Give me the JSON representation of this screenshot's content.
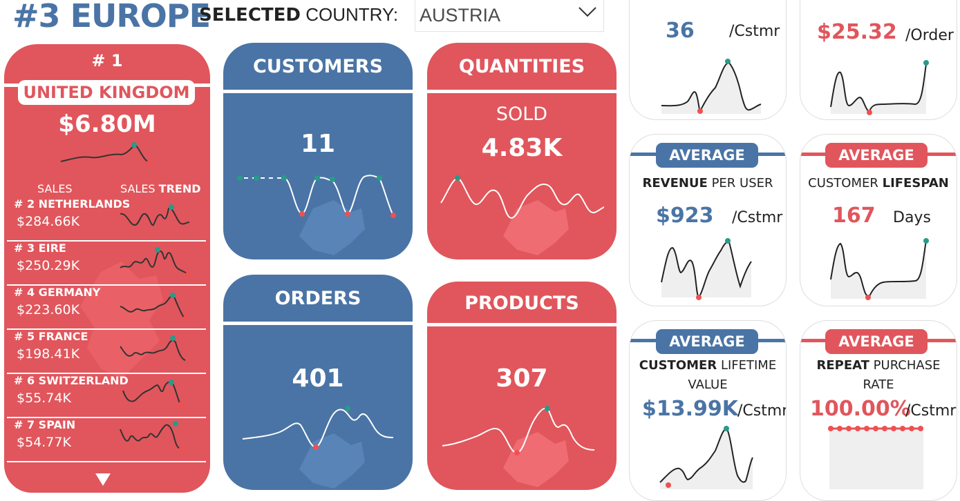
{
  "header": {
    "title": "#3 EUROPE",
    "selected_bold": "SELECTED",
    "selected_rest": " COUNTRY:",
    "country_value": "AUSTRIA"
  },
  "ranking": {
    "top_rank": "# 1",
    "top_country": "UNITED KINGDOM",
    "top_value": "$6.80M",
    "col_sales": "SALES",
    "col_trend_plain": "SALES ",
    "col_trend_bold": "TREND",
    "rows": [
      {
        "name": "# 2 NETHERLANDS",
        "amount": "$284.66K"
      },
      {
        "name": "# 3 EIRE",
        "amount": "$250.29K"
      },
      {
        "name": "# 4 GERMANY",
        "amount": "$223.60K"
      },
      {
        "name": "# 5 FRANCE",
        "amount": "$198.41K"
      },
      {
        "name": "# 6 SWITZERLAND",
        "amount": "$55.74K"
      },
      {
        "name": "# 7 SPAIN",
        "amount": "$54.77K"
      }
    ]
  },
  "kpis": {
    "customers": {
      "title": "CUSTOMERS",
      "value": "11"
    },
    "quantities": {
      "title": "QUANTITIES",
      "sub": "SOLD",
      "value": "4.83K"
    },
    "orders": {
      "title": "ORDERS",
      "value": "401"
    },
    "products": {
      "title": "PRODUCTS",
      "value": "307"
    }
  },
  "averages": {
    "top_left": {
      "value": "36",
      "unit": "/Cstmr"
    },
    "top_right": {
      "value": "$25.32",
      "unit": "/Order"
    },
    "revenue_per_user": {
      "pill": "AVERAGE",
      "bold": "REVENUE",
      "rest": " PER USER",
      "value": "$923",
      "unit": "/Cstmr"
    },
    "customer_lifespan": {
      "pill": "AVERAGE",
      "plain": "CUSTOMER ",
      "bold": "LIFESPAN",
      "value": "167",
      "unit": "Days"
    },
    "customer_lifetime_value": {
      "pill": "AVERAGE",
      "bold": "CUSTOMER",
      "rest": " LIFETIME",
      "line2": "VALUE",
      "value": "$13.99K",
      "unit": "/Cstmr"
    },
    "repeat_purchase_rate": {
      "pill": "AVERAGE",
      "bold": "REPEAT",
      "rest": " PURCHASE",
      "line2": "RATE",
      "value": "100.00%",
      "unit": "/Cstmr"
    }
  },
  "colors": {
    "blue": "#4a74a5",
    "red": "#e0565c",
    "teal": "#2a9a8a",
    "marker_red": "#f05050"
  },
  "icons": {
    "dropdown": "chevron-down-icon",
    "scroll": "triangle-down-icon"
  }
}
